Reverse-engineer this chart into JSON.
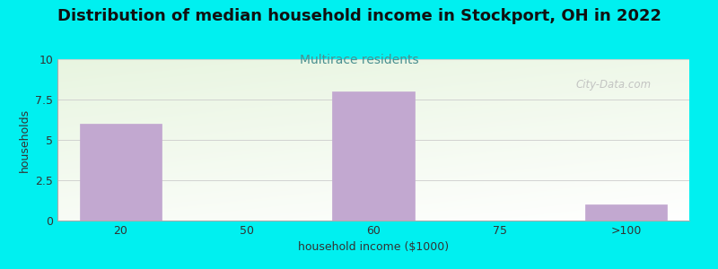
{
  "title": "Distribution of median household income in Stockport, OH in 2022",
  "subtitle": "Multirace residents",
  "xlabel": "household income ($1000)",
  "ylabel": "households",
  "categories": [
    "20",
    "50",
    "60",
    "75",
    ">100"
  ],
  "values": [
    6,
    0,
    8,
    0,
    1
  ],
  "bar_color": "#c2a8d0",
  "ylim": [
    0,
    10
  ],
  "yticks": [
    0,
    2.5,
    5,
    7.5,
    10
  ],
  "background_outer": "#00f0f0",
  "title_fontsize": 13,
  "subtitle_fontsize": 10,
  "subtitle_color": "#4a9090",
  "axis_label_fontsize": 9,
  "tick_fontsize": 9,
  "watermark_text": "City-Data.com"
}
